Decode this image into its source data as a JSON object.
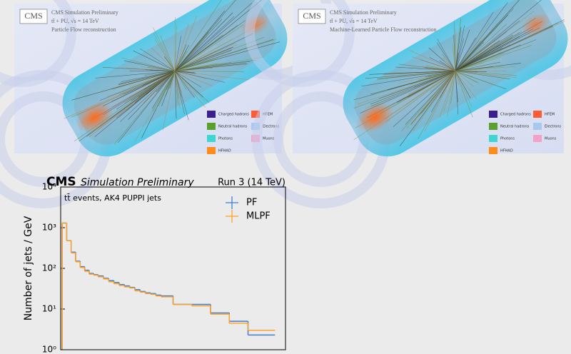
{
  "panels": [
    {
      "logo": "CMS",
      "lines": [
        "CMS Simulation Preliminary",
        "tt̄ + PU, √s = 14 TeV",
        "Particle Flow reconstruction"
      ],
      "legend": [
        {
          "label": "Charged hadrons",
          "color": "#3a1f8f"
        },
        {
          "label": "HFEM",
          "color": "#ff5a36"
        },
        {
          "label": "Neutral hadrons",
          "color": "#5aa02c"
        },
        {
          "label": "Electrons",
          "color": "#a9c8f0"
        },
        {
          "label": "Photons",
          "color": "#3dd6d0"
        },
        {
          "label": "Muons",
          "color": "#f4a0c8"
        },
        {
          "label": "HFHAD",
          "color": "#ff8c1a"
        }
      ]
    },
    {
      "logo": "CMS",
      "lines": [
        "CMS Simulation Preliminary",
        "tt̄ + PU, √s = 14 TeV",
        "Machine-Learned Particle Flow reconstruction"
      ],
      "legend": [
        {
          "label": "Charged hadrons",
          "color": "#3a1f8f"
        },
        {
          "label": "HFEM",
          "color": "#ff5a36"
        },
        {
          "label": "Neutral hadrons",
          "color": "#5aa02c"
        },
        {
          "label": "Electrons",
          "color": "#a9c8f0"
        },
        {
          "label": "Photons",
          "color": "#3dd6d0"
        },
        {
          "label": "Muons",
          "color": "#f4a0c8"
        },
        {
          "label": "HFHAD",
          "color": "#ff8c1a"
        }
      ]
    }
  ],
  "chart_data": {
    "type": "histogram",
    "experiment": "CMS",
    "subtitle": "Simulation Preliminary",
    "energy_label": "Run 3 (14 TeV)",
    "annotation": "tt̄ events, AK4 PUPPI jets",
    "y_label": "Number of jets / GeV",
    "log_y": true,
    "ylim": [
      1,
      10000
    ],
    "yticks": [
      {
        "value": 1,
        "label": "10⁰"
      },
      {
        "value": 10,
        "label": "10¹"
      },
      {
        "value": 100,
        "label": "10²"
      },
      {
        "value": 1000,
        "label": "10³"
      },
      {
        "value": 10000,
        "label": "10⁴"
      }
    ],
    "xlim": [
      0,
      300
    ],
    "bins": [
      2,
      8,
      14,
      20,
      26,
      32,
      38,
      44,
      50,
      57,
      64,
      71,
      78,
      85,
      92,
      99,
      106,
      113,
      120,
      127,
      134,
      150,
      175,
      200,
      225,
      250,
      286
    ],
    "series": [
      {
        "name": "PF",
        "color": "#3f7fd0",
        "values": [
          1300,
          480,
          250,
          150,
          110,
          90,
          75,
          70,
          65,
          57,
          50,
          45,
          40,
          37,
          34,
          30,
          27,
          25,
          24,
          22,
          21,
          13,
          13,
          8,
          5,
          2.3
        ]
      },
      {
        "name": "MLPF",
        "color": "#ffa126",
        "values": [
          1300,
          480,
          240,
          145,
          105,
          85,
          72,
          68,
          62,
          55,
          47,
          42,
          38,
          35,
          33,
          28,
          26,
          24,
          23,
          21,
          20,
          13,
          12,
          7.5,
          4.5,
          3
        ]
      }
    ],
    "legend": "upper right"
  }
}
